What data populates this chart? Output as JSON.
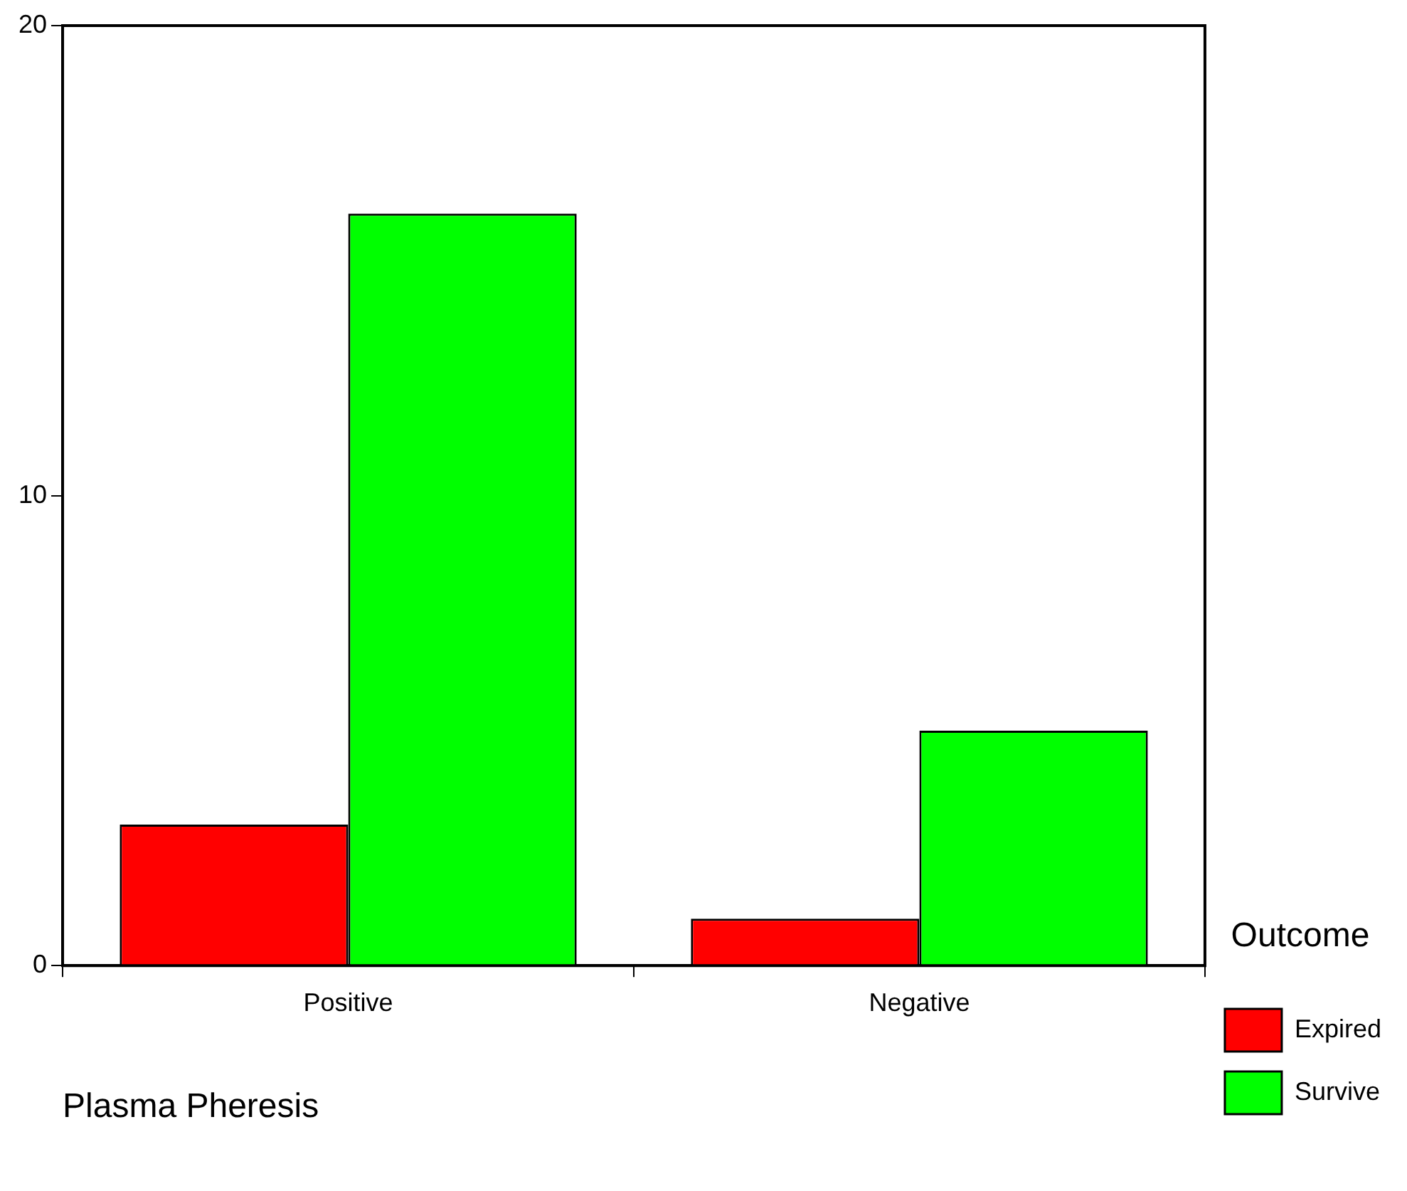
{
  "chart_data": {
    "type": "bar",
    "xlabel": "Plasma Pheresis",
    "legend_title": "Outcome",
    "categories": [
      "Positive",
      "Negative"
    ],
    "series": [
      {
        "name": "Expired",
        "color": "#ff0000",
        "values": [
          3,
          1
        ]
      },
      {
        "name": "Survive",
        "color": "#00ff00",
        "values": [
          16,
          5
        ]
      }
    ],
    "ylim": [
      0,
      20
    ],
    "yticks": [
      0,
      10,
      20
    ],
    "grid": false,
    "legend": "bottom right"
  }
}
